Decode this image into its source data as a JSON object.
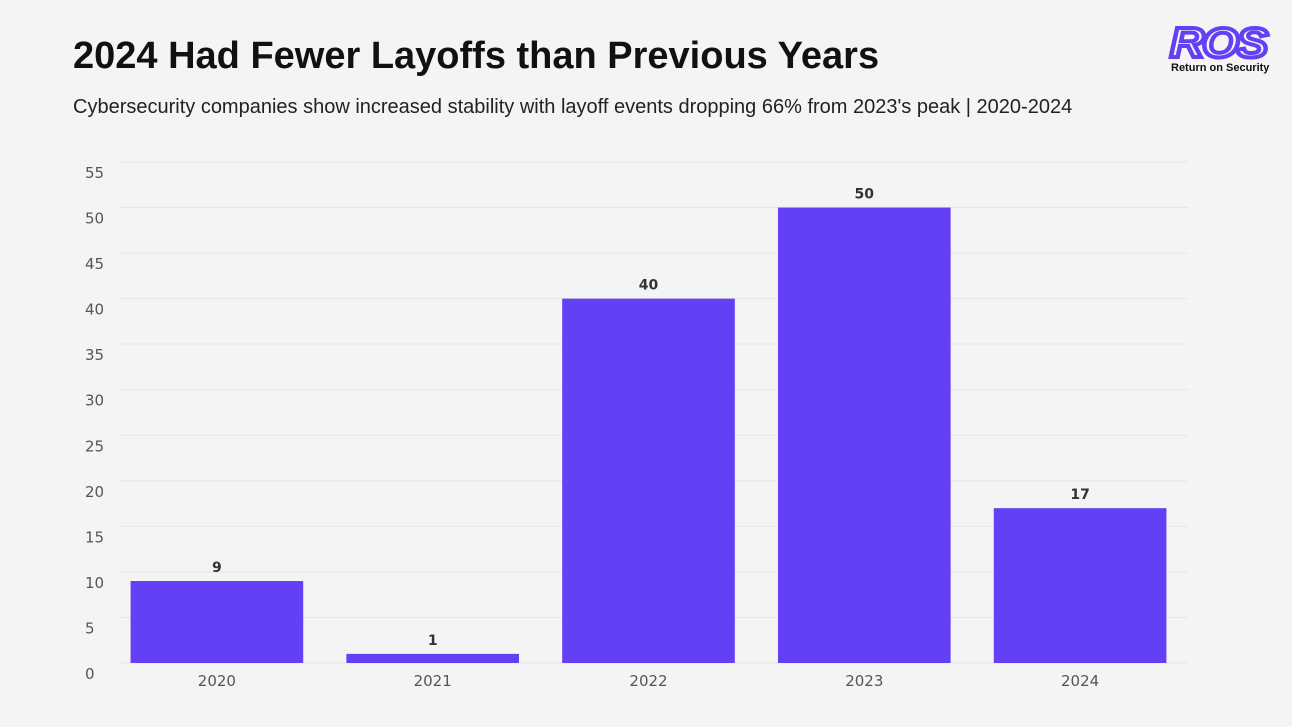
{
  "chart_data": {
    "type": "bar",
    "title": "2024 Had Fewer Layoffs than Previous Years",
    "subtitle": "Cybersecurity companies show increased stability with layoff events dropping 66% from 2023's peak | 2020-2024",
    "brand": {
      "mark": "ROS",
      "text": "Return on Security"
    },
    "categories": [
      "2020",
      "2021",
      "2022",
      "2023",
      "2024"
    ],
    "values": [
      9,
      1,
      40,
      50,
      17
    ],
    "color": "#6440f5",
    "ylim": [
      0,
      55
    ],
    "yticks": [
      0,
      5,
      10,
      15,
      20,
      25,
      30,
      35,
      40,
      45,
      50,
      55
    ],
    "grid": true,
    "show_value_labels": true
  }
}
